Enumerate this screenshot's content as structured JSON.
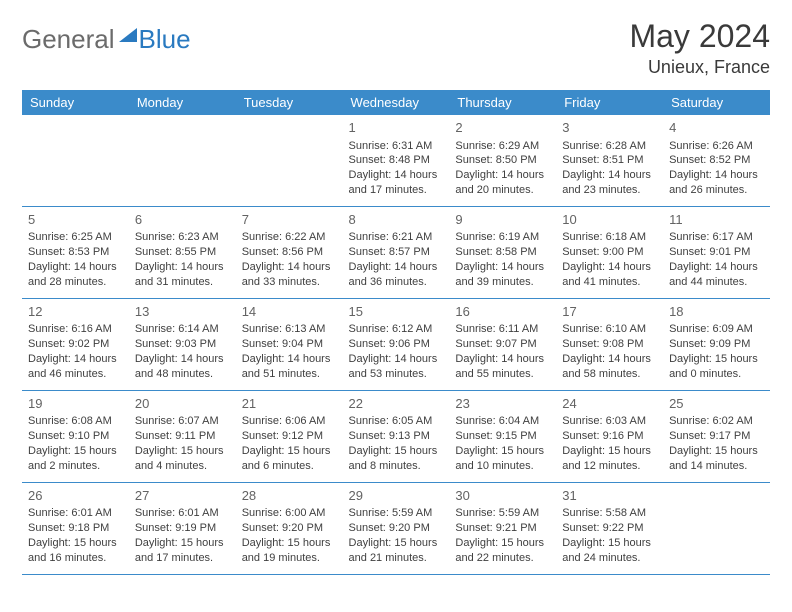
{
  "logo": {
    "part1": "General",
    "part2": "Blue"
  },
  "title": "May 2024",
  "location": "Unieux, France",
  "colors": {
    "header_bg": "#3b8bca",
    "header_fg": "#ffffff",
    "border": "#3b8bca",
    "text": "#404040",
    "logo_gray": "#6b6b6b",
    "logo_blue": "#2a7ac0"
  },
  "weekdays": [
    "Sunday",
    "Monday",
    "Tuesday",
    "Wednesday",
    "Thursday",
    "Friday",
    "Saturday"
  ],
  "weeks": [
    [
      null,
      null,
      null,
      {
        "n": "1",
        "sr": "6:31 AM",
        "ss": "8:48 PM",
        "dl": "14 hours and 17 minutes."
      },
      {
        "n": "2",
        "sr": "6:29 AM",
        "ss": "8:50 PM",
        "dl": "14 hours and 20 minutes."
      },
      {
        "n": "3",
        "sr": "6:28 AM",
        "ss": "8:51 PM",
        "dl": "14 hours and 23 minutes."
      },
      {
        "n": "4",
        "sr": "6:26 AM",
        "ss": "8:52 PM",
        "dl": "14 hours and 26 minutes."
      }
    ],
    [
      {
        "n": "5",
        "sr": "6:25 AM",
        "ss": "8:53 PM",
        "dl": "14 hours and 28 minutes."
      },
      {
        "n": "6",
        "sr": "6:23 AM",
        "ss": "8:55 PM",
        "dl": "14 hours and 31 minutes."
      },
      {
        "n": "7",
        "sr": "6:22 AM",
        "ss": "8:56 PM",
        "dl": "14 hours and 33 minutes."
      },
      {
        "n": "8",
        "sr": "6:21 AM",
        "ss": "8:57 PM",
        "dl": "14 hours and 36 minutes."
      },
      {
        "n": "9",
        "sr": "6:19 AM",
        "ss": "8:58 PM",
        "dl": "14 hours and 39 minutes."
      },
      {
        "n": "10",
        "sr": "6:18 AM",
        "ss": "9:00 PM",
        "dl": "14 hours and 41 minutes."
      },
      {
        "n": "11",
        "sr": "6:17 AM",
        "ss": "9:01 PM",
        "dl": "14 hours and 44 minutes."
      }
    ],
    [
      {
        "n": "12",
        "sr": "6:16 AM",
        "ss": "9:02 PM",
        "dl": "14 hours and 46 minutes."
      },
      {
        "n": "13",
        "sr": "6:14 AM",
        "ss": "9:03 PM",
        "dl": "14 hours and 48 minutes."
      },
      {
        "n": "14",
        "sr": "6:13 AM",
        "ss": "9:04 PM",
        "dl": "14 hours and 51 minutes."
      },
      {
        "n": "15",
        "sr": "6:12 AM",
        "ss": "9:06 PM",
        "dl": "14 hours and 53 minutes."
      },
      {
        "n": "16",
        "sr": "6:11 AM",
        "ss": "9:07 PM",
        "dl": "14 hours and 55 minutes."
      },
      {
        "n": "17",
        "sr": "6:10 AM",
        "ss": "9:08 PM",
        "dl": "14 hours and 58 minutes."
      },
      {
        "n": "18",
        "sr": "6:09 AM",
        "ss": "9:09 PM",
        "dl": "15 hours and 0 minutes."
      }
    ],
    [
      {
        "n": "19",
        "sr": "6:08 AM",
        "ss": "9:10 PM",
        "dl": "15 hours and 2 minutes."
      },
      {
        "n": "20",
        "sr": "6:07 AM",
        "ss": "9:11 PM",
        "dl": "15 hours and 4 minutes."
      },
      {
        "n": "21",
        "sr": "6:06 AM",
        "ss": "9:12 PM",
        "dl": "15 hours and 6 minutes."
      },
      {
        "n": "22",
        "sr": "6:05 AM",
        "ss": "9:13 PM",
        "dl": "15 hours and 8 minutes."
      },
      {
        "n": "23",
        "sr": "6:04 AM",
        "ss": "9:15 PM",
        "dl": "15 hours and 10 minutes."
      },
      {
        "n": "24",
        "sr": "6:03 AM",
        "ss": "9:16 PM",
        "dl": "15 hours and 12 minutes."
      },
      {
        "n": "25",
        "sr": "6:02 AM",
        "ss": "9:17 PM",
        "dl": "15 hours and 14 minutes."
      }
    ],
    [
      {
        "n": "26",
        "sr": "6:01 AM",
        "ss": "9:18 PM",
        "dl": "15 hours and 16 minutes."
      },
      {
        "n": "27",
        "sr": "6:01 AM",
        "ss": "9:19 PM",
        "dl": "15 hours and 17 minutes."
      },
      {
        "n": "28",
        "sr": "6:00 AM",
        "ss": "9:20 PM",
        "dl": "15 hours and 19 minutes."
      },
      {
        "n": "29",
        "sr": "5:59 AM",
        "ss": "9:20 PM",
        "dl": "15 hours and 21 minutes."
      },
      {
        "n": "30",
        "sr": "5:59 AM",
        "ss": "9:21 PM",
        "dl": "15 hours and 22 minutes."
      },
      {
        "n": "31",
        "sr": "5:58 AM",
        "ss": "9:22 PM",
        "dl": "15 hours and 24 minutes."
      },
      null
    ]
  ],
  "labels": {
    "sunrise": "Sunrise:",
    "sunset": "Sunset:",
    "daylight": "Daylight:"
  }
}
